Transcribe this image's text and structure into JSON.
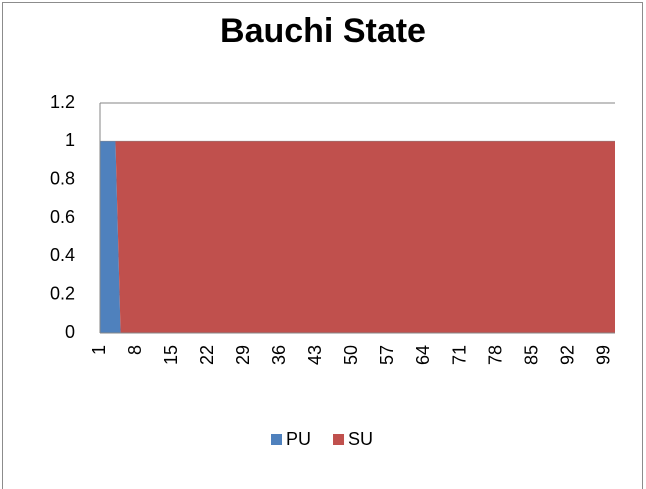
{
  "chart_data": {
    "type": "area",
    "stacked": true,
    "title": "Bauchi State",
    "categories": [
      1,
      null,
      null,
      null,
      null,
      null,
      null,
      8,
      null,
      null,
      null,
      null,
      null,
      null,
      15,
      null,
      null,
      null,
      null,
      null,
      null,
      22,
      null,
      null,
      null,
      null,
      null,
      null,
      29,
      null,
      null,
      null,
      null,
      null,
      null,
      36,
      null,
      null,
      null,
      null,
      null,
      null,
      43,
      null,
      null,
      null,
      null,
      null,
      null,
      50,
      null,
      null,
      null,
      null,
      null,
      null,
      57,
      null,
      null,
      null,
      null,
      null,
      null,
      64,
      null,
      null,
      null,
      null,
      null,
      null,
      71,
      null,
      null,
      null,
      null,
      null,
      null,
      78,
      null,
      null,
      null,
      null,
      null,
      null,
      85,
      null,
      null,
      null,
      null,
      null,
      null,
      92,
      null,
      null,
      null,
      null,
      null,
      null,
      99,
      null,
      null
    ],
    "series": [
      {
        "name": "PU",
        "color": "#4f81bd",
        "values": [
          1,
          1,
          1,
          1,
          0,
          0,
          0,
          0,
          0,
          0,
          0,
          0,
          0,
          0,
          0,
          0,
          0,
          0,
          0,
          0,
          0,
          0,
          0,
          0,
          0,
          0,
          0,
          0,
          0,
          0,
          0,
          0,
          0,
          0,
          0,
          0,
          0,
          0,
          0,
          0,
          0,
          0,
          0,
          0,
          0,
          0,
          0,
          0,
          0,
          0,
          0,
          0,
          0,
          0,
          0,
          0,
          0,
          0,
          0,
          0,
          0,
          0,
          0,
          0,
          0,
          0,
          0,
          0,
          0,
          0,
          0,
          0,
          0,
          0,
          0,
          0,
          0,
          0,
          0,
          0,
          0,
          0,
          0,
          0,
          0,
          0,
          0,
          0,
          0,
          0,
          0,
          0,
          0,
          0,
          0,
          0,
          0,
          0,
          0,
          0,
          0
        ]
      },
      {
        "name": "SU",
        "color": "#c0504d",
        "values": [
          0,
          0,
          0,
          0,
          1,
          1,
          1,
          1,
          1,
          1,
          1,
          1,
          1,
          1,
          1,
          1,
          1,
          1,
          1,
          1,
          1,
          1,
          1,
          1,
          1,
          1,
          1,
          1,
          1,
          1,
          1,
          1,
          1,
          1,
          1,
          1,
          1,
          1,
          1,
          1,
          1,
          1,
          1,
          1,
          1,
          1,
          1,
          1,
          1,
          1,
          1,
          1,
          1,
          1,
          1,
          1,
          1,
          1,
          1,
          1,
          1,
          1,
          1,
          1,
          1,
          1,
          1,
          1,
          1,
          1,
          1,
          1,
          1,
          1,
          1,
          1,
          1,
          1,
          1,
          1,
          1,
          1,
          1,
          1,
          1,
          1,
          1,
          1,
          1,
          1,
          1,
          1,
          1,
          1,
          1,
          1,
          1,
          1,
          1,
          1,
          1
        ]
      }
    ],
    "ylim": [
      0,
      1.2
    ],
    "yticks": [
      0,
      0.2,
      0.4,
      0.6,
      0.8,
      1,
      1.2
    ],
    "grid": true,
    "legend": "bottom"
  }
}
